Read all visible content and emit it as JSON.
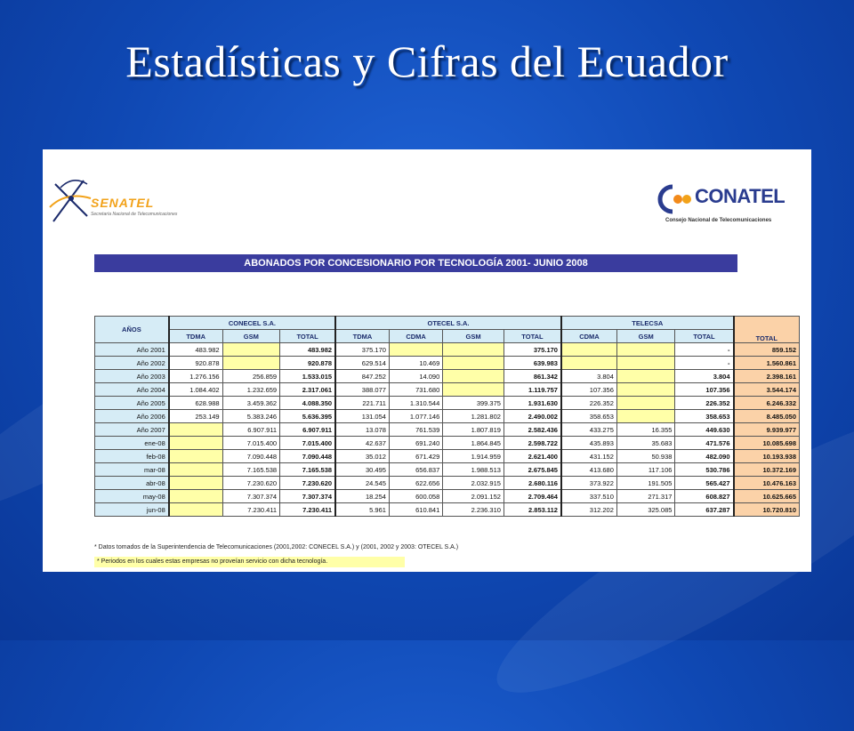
{
  "slide": {
    "title": "Estadísticas y Cifras del Ecuador"
  },
  "logos": {
    "senatel_word": "SENATEL",
    "senatel_sub": "Secretaría Nacional de Telecomunicaciones",
    "conatel_word": "CONATEL",
    "conatel_sub": "Consejo Nacional de Telecomunicaciones"
  },
  "banner": "ABONADOS POR CONCESIONARIO POR TECNOLOGÍA 2001- JUNIO 2008",
  "table": {
    "years_header": "AÑOS",
    "groups": [
      "CONECEL S.A.",
      "OTECEL S.A.",
      "TELECSA"
    ],
    "total_header": "TOTAL",
    "subheaders": [
      "TDMA",
      "GSM",
      "TOTAL",
      "TDMA",
      "CDMA",
      "GSM",
      "TOTAL",
      "CDMA",
      "GSM",
      "TOTAL"
    ],
    "rows": [
      {
        "year": "Año 2001",
        "c_tdma": "483.982",
        "c_gsm": "",
        "c_total": "483.982",
        "o_tdma": "375.170",
        "o_cdma": "",
        "o_gsm": "",
        "o_total": "375.170",
        "t_cdma": "",
        "t_gsm": "",
        "t_total": "-",
        "total": "859.152"
      },
      {
        "year": "Año 2002",
        "c_tdma": "920.878",
        "c_gsm": "",
        "c_total": "920.878",
        "o_tdma": "629.514",
        "o_cdma": "10.469",
        "o_gsm": "",
        "o_total": "639.983",
        "t_cdma": "",
        "t_gsm": "",
        "t_total": "-",
        "total": "1.560.861"
      },
      {
        "year": "Año 2003",
        "c_tdma": "1.276.156",
        "c_gsm": "256.859",
        "c_total": "1.533.015",
        "o_tdma": "847.252",
        "o_cdma": "14.090",
        "o_gsm": "",
        "o_total": "861.342",
        "t_cdma": "3.804",
        "t_gsm": "",
        "t_total": "3.804",
        "total": "2.398.161"
      },
      {
        "year": "Año 2004",
        "c_tdma": "1.084.402",
        "c_gsm": "1.232.659",
        "c_total": "2.317.061",
        "o_tdma": "388.077",
        "o_cdma": "731.680",
        "o_gsm": "",
        "o_total": "1.119.757",
        "t_cdma": "107.356",
        "t_gsm": "",
        "t_total": "107.356",
        "total": "3.544.174"
      },
      {
        "year": "Año 2005",
        "c_tdma": "628.988",
        "c_gsm": "3.459.362",
        "c_total": "4.088.350",
        "o_tdma": "221.711",
        "o_cdma": "1.310.544",
        "o_gsm": "399.375",
        "o_total": "1.931.630",
        "t_cdma": "226.352",
        "t_gsm": "",
        "t_total": "226.352",
        "total": "6.246.332"
      },
      {
        "year": "Año 2006",
        "c_tdma": "253.149",
        "c_gsm": "5.383.246",
        "c_total": "5.636.395",
        "o_tdma": "131.054",
        "o_cdma": "1.077.146",
        "o_gsm": "1.281.802",
        "o_total": "2.490.002",
        "t_cdma": "358.653",
        "t_gsm": "",
        "t_total": "358.653",
        "total": "8.485.050"
      },
      {
        "year": "Año 2007",
        "c_tdma": "",
        "c_gsm": "6.907.911",
        "c_total": "6.907.911",
        "o_tdma": "13.078",
        "o_cdma": "761.539",
        "o_gsm": "1.807.819",
        "o_total": "2.582.436",
        "t_cdma": "433.275",
        "t_gsm": "16.355",
        "t_total": "449.630",
        "total": "9.939.977"
      },
      {
        "year": "ene-08",
        "c_tdma": "",
        "c_gsm": "7.015.400",
        "c_total": "7.015.400",
        "o_tdma": "42.637",
        "o_cdma": "691.240",
        "o_gsm": "1.864.845",
        "o_total": "2.598.722",
        "t_cdma": "435.893",
        "t_gsm": "35.683",
        "t_total": "471.576",
        "total": "10.085.698"
      },
      {
        "year": "feb-08",
        "c_tdma": "",
        "c_gsm": "7.090.448",
        "c_total": "7.090.448",
        "o_tdma": "35.012",
        "o_cdma": "671.429",
        "o_gsm": "1.914.959",
        "o_total": "2.621.400",
        "t_cdma": "431.152",
        "t_gsm": "50.938",
        "t_total": "482.090",
        "total": "10.193.938"
      },
      {
        "year": "mar-08",
        "c_tdma": "",
        "c_gsm": "7.165.538",
        "c_total": "7.165.538",
        "o_tdma": "30.495",
        "o_cdma": "656.837",
        "o_gsm": "1.988.513",
        "o_total": "2.675.845",
        "t_cdma": "413.680",
        "t_gsm": "117.106",
        "t_total": "530.786",
        "total": "10.372.169"
      },
      {
        "year": "abr-08",
        "c_tdma": "",
        "c_gsm": "7.230.620",
        "c_total": "7.230.620",
        "o_tdma": "24.545",
        "o_cdma": "622.656",
        "o_gsm": "2.032.915",
        "o_total": "2.680.116",
        "t_cdma": "373.922",
        "t_gsm": "191.505",
        "t_total": "565.427",
        "total": "10.476.163"
      },
      {
        "year": "may-08",
        "c_tdma": "",
        "c_gsm": "7.307.374",
        "c_total": "7.307.374",
        "o_tdma": "18.254",
        "o_cdma": "600.058",
        "o_gsm": "2.091.152",
        "o_total": "2.709.464",
        "t_cdma": "337.510",
        "t_gsm": "271.317",
        "t_total": "608.827",
        "total": "10.625.665"
      },
      {
        "year": "jun-08",
        "c_tdma": "",
        "c_gsm": "7.230.411",
        "c_total": "7.230.411",
        "o_tdma": "5.961",
        "o_cdma": "610.841",
        "o_gsm": "2.236.310",
        "o_total": "2.853.112",
        "t_cdma": "312.202",
        "t_gsm": "325.085",
        "t_total": "637.287",
        "total": "10.720.810"
      }
    ]
  },
  "notes": {
    "source": "* Datos tomados de la Superintendencia de Telecomunicaciones (2001,2002: CONECEL S.A.) y (2001, 2002 y 2003: OTECEL S.A.)",
    "yellow": "* Periodos en los cuales estas empresas no proveían servicio con dicha tecnología."
  },
  "colors": {
    "banner": "#3a3c9e",
    "header_cell": "#d6ecf6",
    "no_service": "#ffffa8",
    "total_col": "#fbd2a8"
  }
}
